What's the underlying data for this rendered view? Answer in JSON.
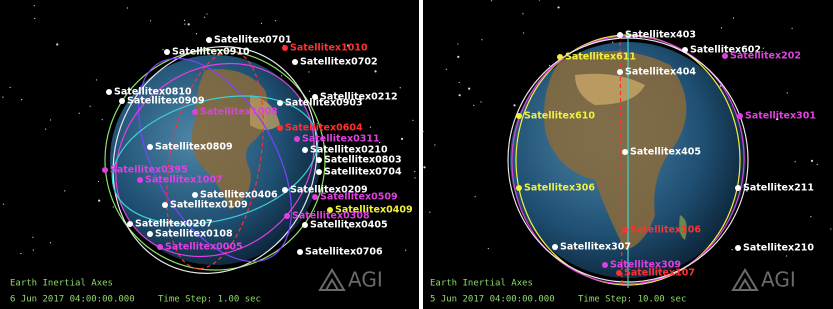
{
  "panels": [
    {
      "frame": "Earth Inertial Axes",
      "time": "6 Jun 2017 04:00:00.000",
      "time_step": "Time Step: 1.00 sec",
      "logo": "AGI",
      "satellites": [
        {
          "label": "Satellitex0701",
          "color": "#ffffff"
        },
        {
          "label": "Satellitex0910",
          "color": "#ffffff"
        },
        {
          "label": "Satellitex1010",
          "color": "#ff3030"
        },
        {
          "label": "Satellitex0702",
          "color": "#ffffff"
        },
        {
          "label": "Satellitex0810",
          "color": "#ffffff"
        },
        {
          "label": "Satellitex0909",
          "color": "#ffffff"
        },
        {
          "label": "Satellitex1008",
          "color": "#e040e0"
        },
        {
          "label": "Satellitex0212",
          "color": "#ffffff"
        },
        {
          "label": "Satellitex0604",
          "color": "#ff3030"
        },
        {
          "label": "Satellitex0311",
          "color": "#e040e0"
        },
        {
          "label": "Satellitex0210",
          "color": "#ffffff"
        },
        {
          "label": "Satellitex0803",
          "color": "#ffffff"
        },
        {
          "label": "Satellitex0704",
          "color": "#ffffff"
        },
        {
          "label": "Satellitex0809",
          "color": "#ffffff"
        },
        {
          "label": "Satellitex0395",
          "color": "#e040e0"
        },
        {
          "label": "Satellitex1007",
          "color": "#e040e0"
        },
        {
          "label": "Satellitex0406",
          "color": "#ffffff"
        },
        {
          "label": "Satellitex0209",
          "color": "#ffffff"
        },
        {
          "label": "Satellitex0509",
          "color": "#e040e0"
        },
        {
          "label": "Satellitex0109",
          "color": "#ffffff"
        },
        {
          "label": "Satellitex0409",
          "color": "#f0f040"
        },
        {
          "label": "Satellitex0308",
          "color": "#e040e0"
        },
        {
          "label": "Satellitex0207",
          "color": "#ffffff"
        },
        {
          "label": "Satellitex0108",
          "color": "#ffffff"
        },
        {
          "label": "Satellitex0405",
          "color": "#ffffff"
        },
        {
          "label": "Satellitex0005",
          "color": "#e040e0"
        },
        {
          "label": "Satellitex0706",
          "color": "#ffffff"
        },
        {
          "label": "Satellitex0903",
          "color": "#ffffff"
        }
      ]
    },
    {
      "frame": "Earth Inertial Axes",
      "time": "5 Jun 2017 04:00:00.000",
      "time_step": "Time Step: 10.00 sec",
      "logo": "AGI",
      "satellites": [
        {
          "label": "Satellitex403",
          "color": "#ffffff"
        },
        {
          "label": "Satellitex602",
          "color": "#ffffff"
        },
        {
          "label": "Satellitex202",
          "color": "#e040e0"
        },
        {
          "label": "Satellitex611",
          "color": "#f0f040"
        },
        {
          "label": "Satellitex404",
          "color": "#ffffff"
        },
        {
          "label": "Satellitex610",
          "color": "#f0f040"
        },
        {
          "label": "Satellitex301",
          "color": "#e040e0"
        },
        {
          "label": "Satellitex405",
          "color": "#ffffff"
        },
        {
          "label": "Satellitex211",
          "color": "#ffffff"
        },
        {
          "label": "Satellitex306",
          "color": "#f0f040"
        },
        {
          "label": "Satellitex106",
          "color": "#ff3030"
        },
        {
          "label": "Satellitex210",
          "color": "#ffffff"
        },
        {
          "label": "Satellitex307",
          "color": "#ffffff"
        },
        {
          "label": "Satellitex309",
          "color": "#e040e0"
        },
        {
          "label": "Satellitex107",
          "color": "#ff3030"
        }
      ]
    }
  ]
}
